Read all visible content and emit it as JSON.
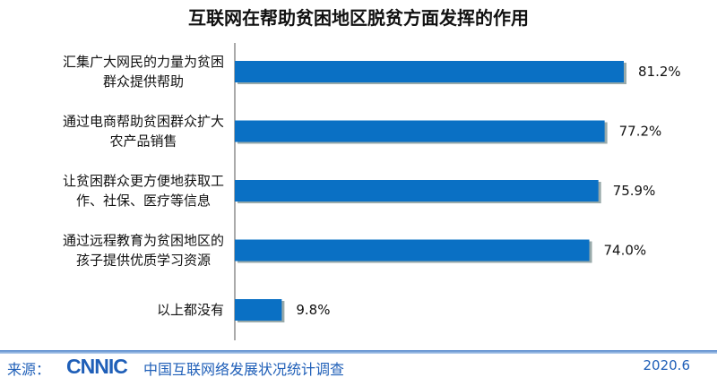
{
  "chart_data": {
    "type": "bar",
    "orientation": "horizontal",
    "title": "互联网在帮助贫困地区脱贫方面发挥的作用",
    "categories": [
      [
        "汇集广大网民的力量为贫困",
        "群众提供帮助"
      ],
      [
        "通过电商帮助贫困群众扩大",
        "农产品销售"
      ],
      [
        "让贫困群众更方便地获取工",
        "作、社保、医疗等信息"
      ],
      [
        "通过远程教育为贫困地区的",
        "孩子提供优质学习资源"
      ],
      [
        "以上都没有"
      ]
    ],
    "values": [
      81.2,
      77.2,
      75.9,
      74.0,
      9.8
    ],
    "value_labels": [
      "81.2%",
      "77.2%",
      "75.9%",
      "74.0%",
      "9.8%"
    ],
    "xlim": [
      0,
      100
    ],
    "grid": false,
    "bar_color": "#0a70c4"
  },
  "footer": {
    "source_label": "来源：",
    "logo": "CNNIC",
    "org": "中国互联网络发展状况统计调查",
    "date": "2020.6"
  }
}
